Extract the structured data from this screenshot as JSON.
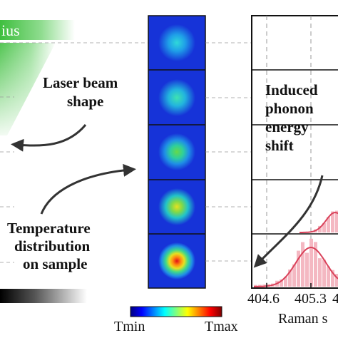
{
  "left_panel": {
    "header_fragment": "ius"
  },
  "labels": {
    "laser_beam": [
      "Laser beam",
      "shape"
    ],
    "temperature": [
      "Temperature",
      "distribution",
      "on sample"
    ],
    "phonon": [
      "Induced",
      "phonon",
      "energy",
      "shift"
    ]
  },
  "colorbar": {
    "min_label": "Tmin",
    "max_label": "Tmax",
    "stops": [
      "#00007f",
      "#0000ff",
      "#007fff",
      "#00ffff",
      "#7fff7f",
      "#ffff00",
      "#ff7f00",
      "#ff0000",
      "#7f0000"
    ]
  },
  "spectrum": {
    "x_ticks": [
      "404.6",
      "405.3",
      "4"
    ],
    "x_label_fragment": "Raman s",
    "bar_color": "#f4b8c2",
    "curve_color": "#d9425a"
  },
  "beam_images": {
    "count": 5,
    "background_color": "#1633d8"
  }
}
